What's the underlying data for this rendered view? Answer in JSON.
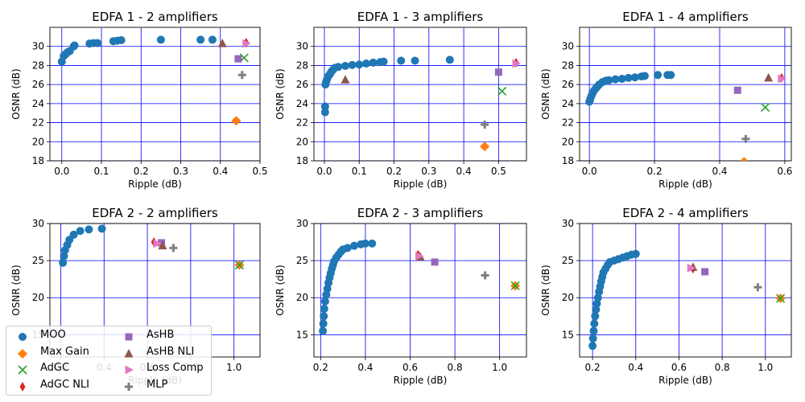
{
  "colors": {
    "MOO": "#1f77b4",
    "Max Gain": "#ff7f0e",
    "AdGC": "#2ca02c",
    "AdGC NLI": "#d62728",
    "AsHB": "#9467bd",
    "AsHB NLI": "#8c564b",
    "Loss Comp": "#e377c2",
    "MLP": "#7f7f7f",
    "grid": "#0000ff"
  },
  "markers": {
    "MOO": "circle",
    "Max Gain": "diamond",
    "AdGC": "x",
    "AdGC NLI": "thin-diamond",
    "AsHB": "square",
    "AsHB NLI": "triangle-up",
    "Loss Comp": "triangle-right",
    "MLP": "plus"
  },
  "legend": {
    "placement": "lower-left",
    "entries": [
      "MOO",
      "Max Gain",
      "AdGC",
      "AdGC NLI",
      "AsHB",
      "AsHB NLI",
      "Loss Comp",
      "MLP"
    ]
  },
  "chart_data": [
    {
      "type": "scatter",
      "title": "EDFA 1 - 2 amplifiers",
      "xlabel": "Ripple (dB)",
      "ylabel": "OSNR (dB)",
      "xlim": [
        -0.03,
        0.5
      ],
      "ylim": [
        18,
        32
      ],
      "xticks": [
        0.0,
        0.1,
        0.2,
        0.3,
        0.4,
        0.5
      ],
      "xtick_labels": [
        "0.0",
        "0.1",
        "0.2",
        "0.3",
        "0.4",
        "0.5"
      ],
      "yticks": [
        18,
        20,
        22,
        24,
        26,
        28,
        30
      ],
      "grid": true,
      "moo": [
        [
          0.0,
          28.4
        ],
        [
          0.005,
          29.0
        ],
        [
          0.01,
          29.2
        ],
        [
          0.015,
          29.4
        ],
        [
          0.02,
          29.5
        ],
        [
          0.03,
          30.0
        ],
        [
          0.032,
          30.1
        ],
        [
          0.07,
          30.3
        ],
        [
          0.08,
          30.35
        ],
        [
          0.09,
          30.35
        ],
        [
          0.13,
          30.55
        ],
        [
          0.14,
          30.6
        ],
        [
          0.15,
          30.65
        ],
        [
          0.25,
          30.7
        ],
        [
          0.35,
          30.7
        ],
        [
          0.38,
          30.7
        ]
      ],
      "methods": {
        "Max Gain": [
          0.44,
          22.2
        ],
        "AdGC": [
          0.46,
          28.8
        ],
        "AdGC NLI": [
          0.465,
          30.4
        ],
        "AsHB": [
          0.445,
          28.7
        ],
        "AsHB NLI": [
          0.405,
          30.3
        ],
        "Loss Comp": [
          0.465,
          30.3
        ],
        "MLP": [
          0.455,
          27.0
        ]
      }
    },
    {
      "type": "scatter",
      "title": "EDFA 1 - 3 amplifiers",
      "xlabel": "Ripple (dB)",
      "ylabel": "OSNR (dB)",
      "xlim": [
        -0.03,
        0.58
      ],
      "ylim": [
        18,
        32
      ],
      "xticks": [
        0.0,
        0.1,
        0.2,
        0.3,
        0.4,
        0.5
      ],
      "xtick_labels": [
        "0.0",
        "0.1",
        "0.2",
        "0.3",
        "0.4",
        "0.5"
      ],
      "yticks": [
        18,
        20,
        22,
        24,
        26,
        28,
        30
      ],
      "grid": true,
      "moo": [
        [
          0.002,
          23.1
        ],
        [
          0.002,
          23.7
        ],
        [
          0.003,
          26.0
        ],
        [
          0.005,
          26.3
        ],
        [
          0.008,
          26.6
        ],
        [
          0.012,
          26.9
        ],
        [
          0.016,
          27.1
        ],
        [
          0.02,
          27.35
        ],
        [
          0.025,
          27.55
        ],
        [
          0.03,
          27.75
        ],
        [
          0.04,
          27.85
        ],
        [
          0.06,
          27.95
        ],
        [
          0.08,
          28.05
        ],
        [
          0.1,
          28.1
        ],
        [
          0.12,
          28.2
        ],
        [
          0.14,
          28.3
        ],
        [
          0.16,
          28.35
        ],
        [
          0.17,
          28.4
        ],
        [
          0.22,
          28.5
        ],
        [
          0.26,
          28.5
        ],
        [
          0.36,
          28.6
        ]
      ],
      "methods": {
        "Max Gain": [
          0.46,
          19.5
        ],
        "AdGC": [
          0.51,
          25.3
        ],
        "AdGC NLI": [
          0.55,
          28.3
        ],
        "AsHB": [
          0.5,
          27.3
        ],
        "AsHB NLI": [
          0.06,
          26.5
        ],
        "Loss Comp": [
          0.55,
          28.2
        ],
        "MLP": [
          0.46,
          21.8
        ]
      }
    },
    {
      "type": "scatter",
      "title": "EDFA 1 - 4 amplifiers",
      "xlabel": "Ripple (dB)",
      "ylabel": "OSNR (dB)",
      "xlim": [
        -0.03,
        0.62
      ],
      "ylim": [
        18,
        32
      ],
      "xticks": [
        0.0,
        0.2,
        0.4,
        0.6
      ],
      "xtick_labels": [
        "0.0",
        "0.2",
        "0.4",
        "0.6"
      ],
      "yticks": [
        18,
        20,
        22,
        24,
        26,
        28,
        30
      ],
      "grid": true,
      "moo": [
        [
          0.0,
          24.2
        ],
        [
          0.003,
          24.5
        ],
        [
          0.006,
          24.8
        ],
        [
          0.01,
          25.1
        ],
        [
          0.015,
          25.4
        ],
        [
          0.02,
          25.6
        ],
        [
          0.025,
          25.8
        ],
        [
          0.03,
          26.0
        ],
        [
          0.04,
          26.25
        ],
        [
          0.05,
          26.4
        ],
        [
          0.06,
          26.45
        ],
        [
          0.08,
          26.55
        ],
        [
          0.1,
          26.6
        ],
        [
          0.12,
          26.7
        ],
        [
          0.14,
          26.75
        ],
        [
          0.16,
          26.85
        ],
        [
          0.17,
          26.9
        ],
        [
          0.21,
          27.0
        ],
        [
          0.24,
          27.0
        ],
        [
          0.25,
          27.0
        ]
      ],
      "methods": {
        "Max Gain": [
          0.475,
          17.9
        ],
        "AdGC": [
          0.54,
          23.6
        ],
        "AdGC NLI": [
          0.59,
          26.7
        ],
        "AsHB": [
          0.455,
          25.4
        ],
        "AsHB NLI": [
          0.55,
          26.7
        ],
        "Loss Comp": [
          0.59,
          26.6
        ],
        "MLP": [
          0.48,
          20.3
        ]
      }
    },
    {
      "type": "scatter",
      "title": "EDFA 2 - 2 amplifiers",
      "xlabel": "Ripple (dB)",
      "ylabel": "OSNR (dB)",
      "xlim": [
        0.15,
        1.12
      ],
      "ylim": [
        12,
        30
      ],
      "xticks": [
        0.2,
        0.4,
        0.6,
        0.8,
        1.0
      ],
      "xtick_labels": [
        "0.2",
        "0.4",
        "0.6",
        "0.8",
        "1.0"
      ],
      "yticks": [
        15,
        20,
        25,
        30
      ],
      "grid": true,
      "moo": [
        [
          0.21,
          24.7
        ],
        [
          0.215,
          25.6
        ],
        [
          0.22,
          26.4
        ],
        [
          0.23,
          27.1
        ],
        [
          0.24,
          27.8
        ],
        [
          0.26,
          28.5
        ],
        [
          0.29,
          29.0
        ],
        [
          0.33,
          29.2
        ],
        [
          0.39,
          29.3
        ]
      ],
      "methods": {
        "Max Gain": [
          1.025,
          24.4
        ],
        "AdGC": [
          1.025,
          24.4
        ],
        "AdGC NLI": [
          0.63,
          27.5
        ],
        "AsHB": [
          0.665,
          27.4
        ],
        "AsHB NLI": [
          0.67,
          27.0
        ],
        "Loss Comp": [
          0.645,
          27.3
        ],
        "MLP": [
          0.72,
          26.7
        ]
      }
    },
    {
      "type": "scatter",
      "title": "EDFA 2 - 3 amplifiers",
      "xlabel": "Ripple (dB)",
      "ylabel": "OSNR (dB)",
      "xlim": [
        0.17,
        1.12
      ],
      "ylim": [
        12,
        30
      ],
      "xticks": [
        0.2,
        0.4,
        0.6,
        0.8,
        1.0
      ],
      "xtick_labels": [
        "0.2",
        "0.4",
        "0.6",
        "0.8",
        "1.0"
      ],
      "yticks": [
        15,
        20,
        25,
        30
      ],
      "grid": true,
      "moo": [
        [
          0.21,
          15.5
        ],
        [
          0.212,
          16.5
        ],
        [
          0.214,
          17.5
        ],
        [
          0.216,
          18.5
        ],
        [
          0.22,
          19.5
        ],
        [
          0.225,
          20.4
        ],
        [
          0.23,
          21.2
        ],
        [
          0.235,
          22.0
        ],
        [
          0.24,
          22.7
        ],
        [
          0.245,
          23.3
        ],
        [
          0.25,
          23.9
        ],
        [
          0.255,
          24.4
        ],
        [
          0.26,
          24.9
        ],
        [
          0.27,
          25.4
        ],
        [
          0.28,
          25.8
        ],
        [
          0.29,
          26.2
        ],
        [
          0.3,
          26.5
        ],
        [
          0.32,
          26.7
        ],
        [
          0.35,
          27.0
        ],
        [
          0.38,
          27.2
        ],
        [
          0.4,
          27.3
        ],
        [
          0.43,
          27.3
        ]
      ],
      "methods": {
        "Max Gain": [
          1.07,
          21.6
        ],
        "AdGC": [
          1.07,
          21.6
        ],
        "AdGC NLI": [
          0.635,
          25.8
        ],
        "AsHB": [
          0.71,
          24.8
        ],
        "AsHB NLI": [
          0.645,
          25.5
        ],
        "Loss Comp": [
          0.64,
          25.6
        ],
        "MLP": [
          0.935,
          23.0
        ]
      }
    },
    {
      "type": "scatter",
      "title": "EDFA 2 - 4 amplifiers",
      "xlabel": "Ripple (dB)",
      "ylabel": "OSNR (dB)",
      "xlim": [
        0.14,
        1.12
      ],
      "ylim": [
        12,
        30
      ],
      "xticks": [
        0.2,
        0.4,
        0.6,
        0.8,
        1.0
      ],
      "xtick_labels": [
        "0.2",
        "0.4",
        "0.6",
        "0.8",
        "1.0"
      ],
      "yticks": [
        15,
        20,
        25,
        30
      ],
      "grid": true,
      "moo": [
        [
          0.2,
          13.5
        ],
        [
          0.202,
          14.5
        ],
        [
          0.205,
          15.5
        ],
        [
          0.208,
          16.5
        ],
        [
          0.212,
          17.5
        ],
        [
          0.216,
          18.4
        ],
        [
          0.22,
          19.2
        ],
        [
          0.225,
          20.0
        ],
        [
          0.23,
          20.8
        ],
        [
          0.235,
          21.5
        ],
        [
          0.24,
          22.2
        ],
        [
          0.245,
          22.8
        ],
        [
          0.25,
          23.4
        ],
        [
          0.26,
          23.9
        ],
        [
          0.27,
          24.4
        ],
        [
          0.28,
          24.8
        ],
        [
          0.3,
          25.0
        ],
        [
          0.32,
          25.2
        ],
        [
          0.34,
          25.4
        ],
        [
          0.36,
          25.6
        ],
        [
          0.38,
          25.8
        ],
        [
          0.4,
          25.9
        ]
      ],
      "methods": {
        "Max Gain": [
          1.07,
          19.9
        ],
        "AdGC": [
          1.07,
          19.9
        ],
        "AdGC NLI": [
          0.665,
          23.9
        ],
        "AsHB": [
          0.72,
          23.5
        ],
        "AsHB NLI": [
          0.665,
          24.1
        ],
        "Loss Comp": [
          0.655,
          24.0
        ],
        "MLP": [
          0.965,
          21.4
        ]
      }
    }
  ]
}
